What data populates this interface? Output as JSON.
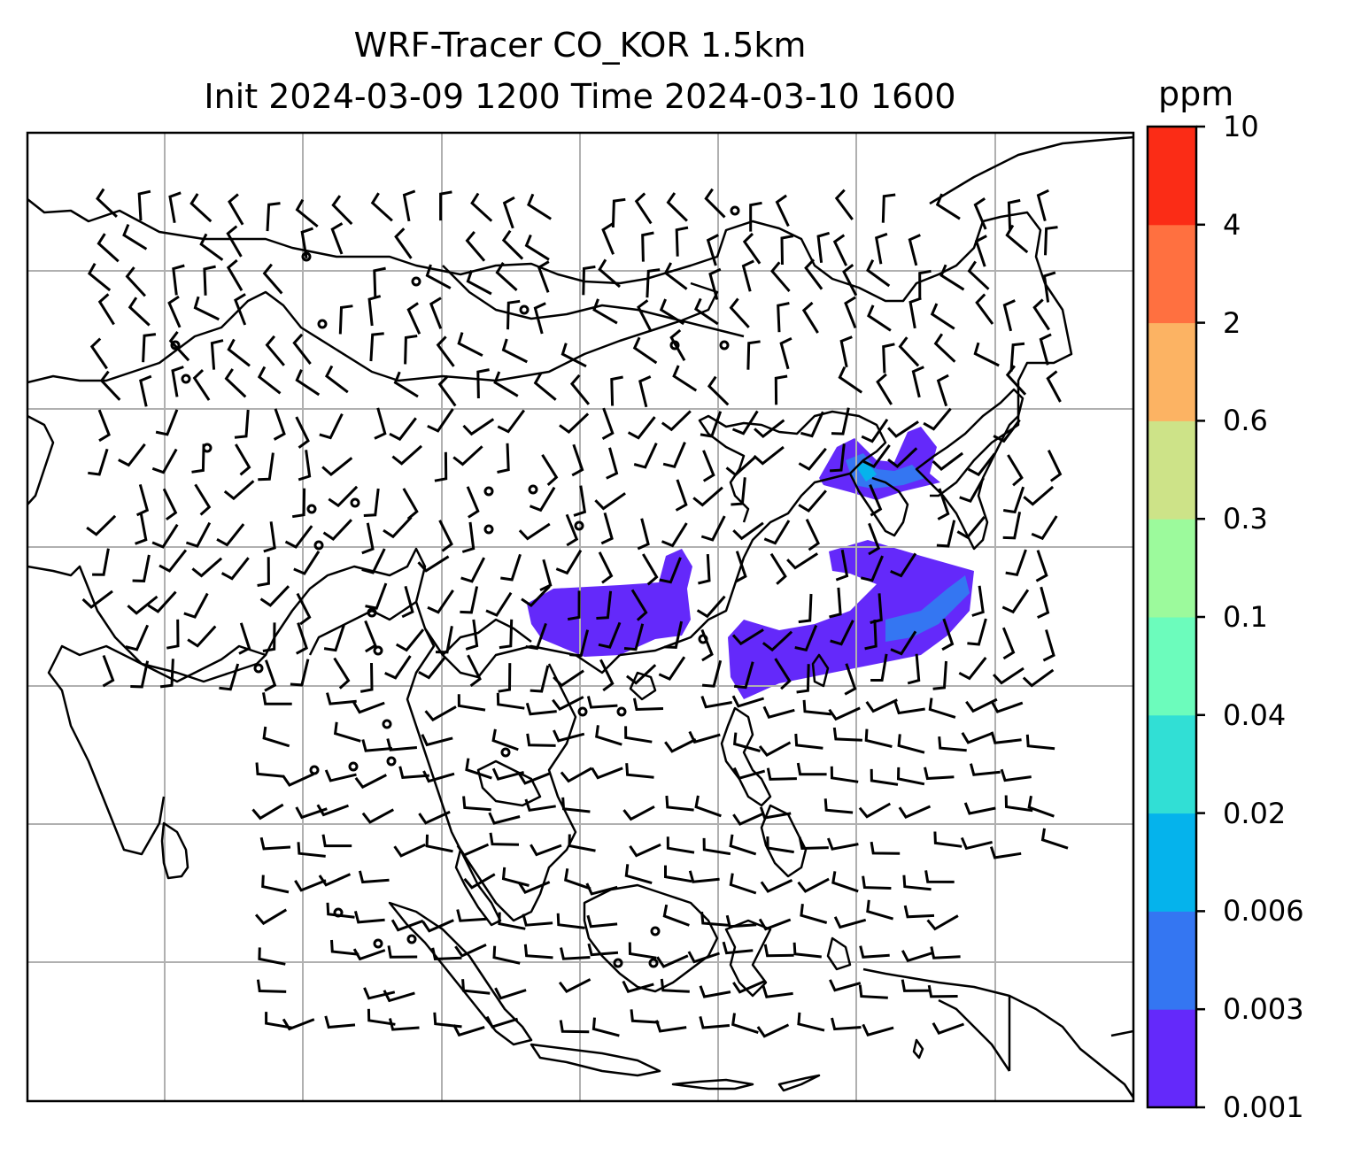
{
  "title": {
    "line1": "WRF-Tracer CO_KOR 1.5km",
    "line2": "Init 2024-03-09 1200 Time 2024-03-10 1600"
  },
  "colorbar": {
    "unit": "ppm",
    "ticks": [
      "0.001",
      "0.003",
      "0.006",
      "0.02",
      "0.04",
      "0.1",
      "0.3",
      "0.6",
      "2",
      "4",
      "10"
    ],
    "colors": [
      "#6429fa",
      "#3476f2",
      "#05b3ec",
      "#31dfd5",
      "#6cfcbc",
      "#9cfa9c",
      "#cde388",
      "#fcb363",
      "#ff7040",
      "#fb2c16"
    ]
  },
  "map": {
    "layers": [
      "coastlines",
      "gridlines",
      "wind-barbs",
      "tracer-concentration"
    ],
    "plume_level": "0.001"
  }
}
